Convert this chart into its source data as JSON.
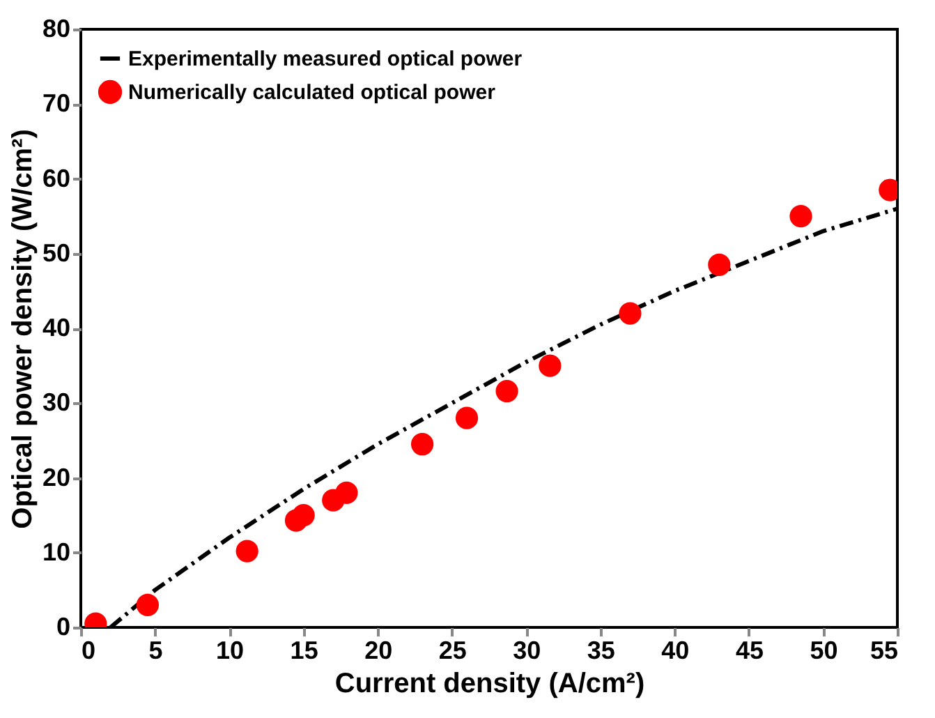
{
  "chart_data": {
    "type": "scatter",
    "xlabel": "Current density (A/cm²)",
    "ylabel": "Optical power density (W/cm²)",
    "xlim": [
      0,
      55
    ],
    "ylim": [
      0,
      80
    ],
    "xticks": [
      0,
      5,
      10,
      15,
      20,
      25,
      30,
      35,
      40,
      45,
      50,
      55
    ],
    "yticks": [
      0,
      10,
      20,
      30,
      40,
      50,
      60,
      70,
      80
    ],
    "grid": false,
    "legend": "top left",
    "series": [
      {
        "name": "Experimentally measured optical power",
        "type": "line",
        "color": "#000000",
        "line_style": "dashdot",
        "marker": "none",
        "x": [
          2,
          5,
          10,
          15,
          20,
          25,
          30,
          35,
          40,
          45,
          50,
          55
        ],
        "values": [
          0,
          5,
          12,
          18.5,
          24.5,
          30,
          35.5,
          40.5,
          45,
          49,
          53,
          56
        ]
      },
      {
        "name": "Numerically calculated optical power",
        "color": "#ff0000",
        "marker": "circle",
        "x": [
          1,
          4.5,
          11.2,
          14.5,
          15,
          17,
          17.9,
          23,
          26,
          28.7,
          31.6,
          37,
          43,
          48.5,
          54.5
        ],
        "values": [
          0.5,
          3,
          10.2,
          14.3,
          15,
          17,
          18,
          24.5,
          28,
          31.6,
          35,
          42,
          48.5,
          55,
          58.5
        ]
      }
    ]
  }
}
